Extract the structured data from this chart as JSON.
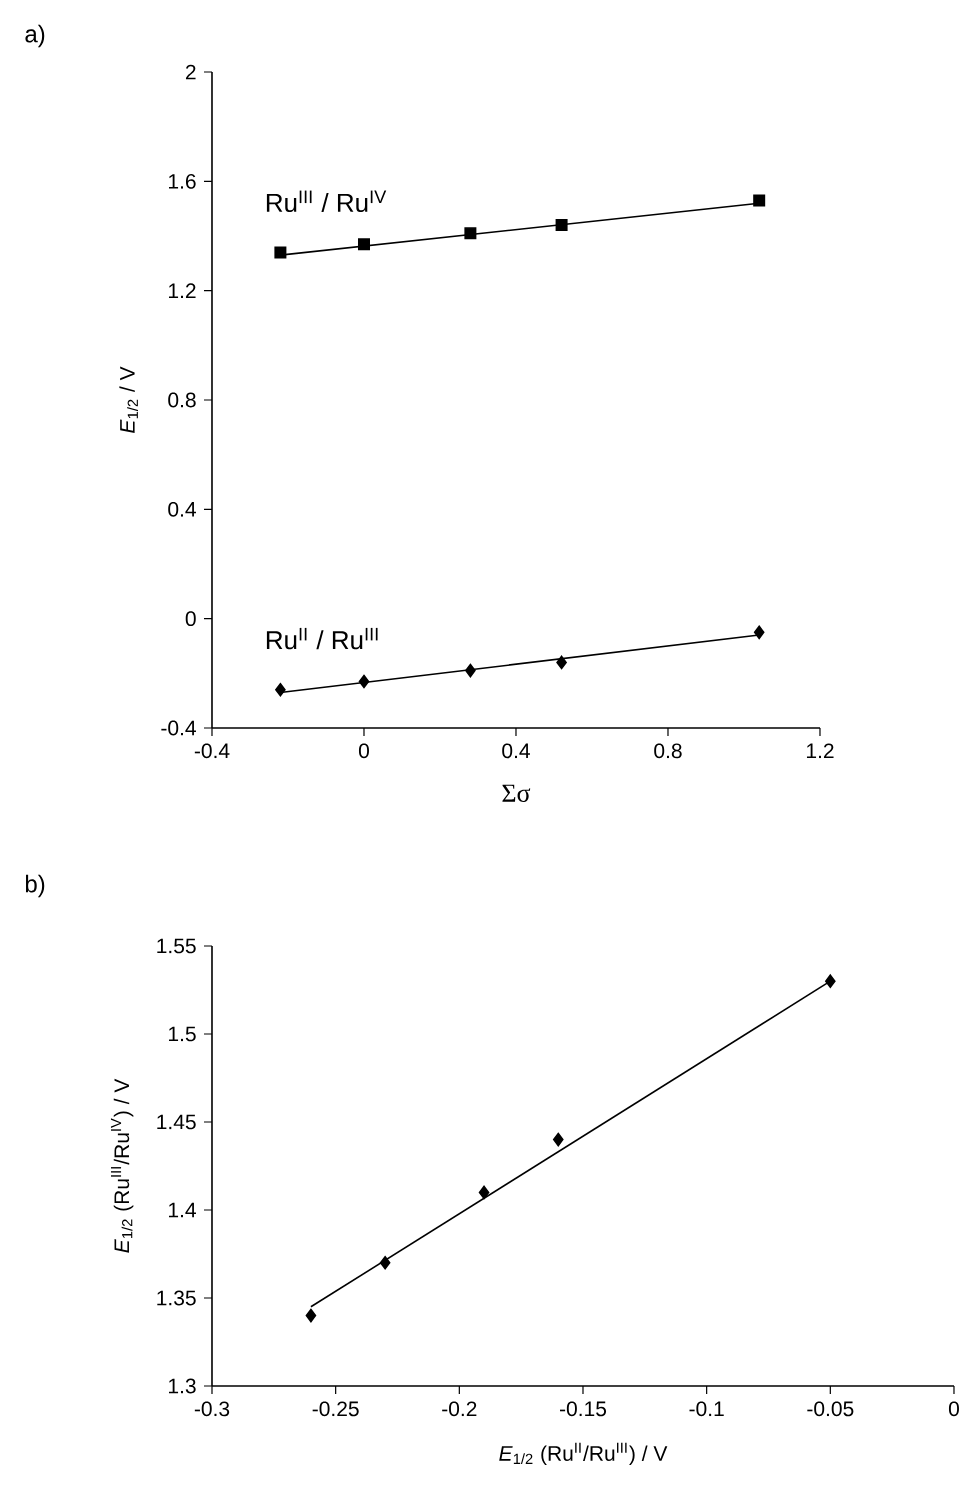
{
  "chart_data": [
    {
      "type": "scatter",
      "title": "a)",
      "xlabel": "Σσ",
      "ylabel": "*E*$_{1/2}$ / V",
      "xlim": [
        -0.4,
        1.2
      ],
      "ylim": [
        -0.4,
        2
      ],
      "xticks": [
        -0.4,
        0,
        0.4,
        0.8,
        1.2
      ],
      "yticks": [
        -0.4,
        0,
        0.4,
        0.8,
        1.2,
        1.6,
        2
      ],
      "series": [
        {
          "name": "Ru$^{III}$ / Ru$^{IV}$",
          "marker": "square",
          "color": "#000000",
          "x": [
            -0.22,
            0,
            0.28,
            0.52,
            1.04
          ],
          "values": [
            1.34,
            1.37,
            1.41,
            1.44,
            1.53
          ]
        },
        {
          "name": "Ru$^{II}$ / Ru$^{III}$",
          "marker": "diamond",
          "color": "#000000",
          "x": [
            -0.22,
            0,
            0.28,
            0.52,
            1.04
          ],
          "values": [
            -0.26,
            -0.23,
            -0.19,
            -0.16,
            -0.05
          ]
        },
        {
          "type": "line",
          "marker": "none",
          "color": "#000000",
          "x": [
            -0.22,
            1.04
          ],
          "values": [
            1.33,
            1.52
          ]
        },
        {
          "type": "line",
          "marker": "none",
          "color": "#000000",
          "x": [
            -0.22,
            1.04
          ],
          "values": [
            -0.27,
            -0.06
          ]
        }
      ]
    },
    {
      "type": "scatter",
      "title": "b)",
      "xlabel": "*E*$_{1/2}$ (Ru$^{II}$/Ru$^{III}$) / V",
      "ylabel": "*E*$_{1/2}$ (Ru$^{III}$/Ru$^{IV}$) / V",
      "xlim": [
        -0.3,
        0
      ],
      "ylim": [
        1.3,
        1.55
      ],
      "xticks": [
        -0.3,
        -0.25,
        -0.2,
        -0.15,
        -0.1,
        -0.05,
        0
      ],
      "yticks": [
        1.3,
        1.35,
        1.4,
        1.45,
        1.5,
        1.55
      ],
      "series": [
        {
          "marker": "diamond",
          "color": "#000000",
          "x": [
            -0.26,
            -0.23,
            -0.19,
            -0.16,
            -0.05
          ],
          "values": [
            1.34,
            1.37,
            1.41,
            1.44,
            1.53
          ]
        },
        {
          "type": "line",
          "marker": "none",
          "color": "#000000",
          "x": [
            -0.26,
            -0.05
          ],
          "values": [
            1.345,
            1.53
          ]
        }
      ]
    }
  ]
}
